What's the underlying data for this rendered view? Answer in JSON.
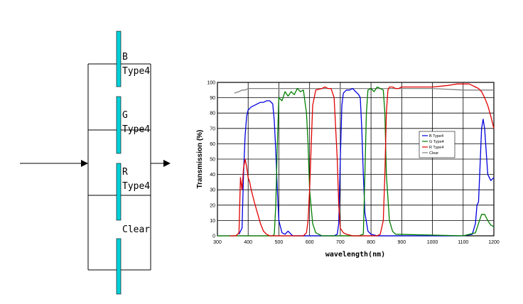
{
  "diagram": {
    "filters": [
      {
        "name": "B",
        "type": "Type4"
      },
      {
        "name": "G",
        "type": "Type4"
      },
      {
        "name": "R",
        "type": "Type4"
      },
      {
        "name": "Clear",
        "type": ""
      }
    ],
    "colors": {
      "filter_bar": "#00d0d8",
      "line": "#000000"
    }
  },
  "chart_data": {
    "type": "line",
    "xlabel": "wavelength(nm)",
    "ylabel": "Transmission (%)",
    "xlim": [
      300,
      1200
    ],
    "ylim": [
      0,
      100
    ],
    "xticks": [
      "300",
      "400",
      "500",
      "600",
      "700",
      "800",
      "900",
      "1000",
      "1100",
      "1200"
    ],
    "yticks": [
      "0",
      "10",
      "20",
      "30",
      "40",
      "50",
      "60",
      "70",
      "80",
      "90",
      "100"
    ],
    "grid": true,
    "legend_position": "right",
    "series": [
      {
        "name": "B Type4",
        "color": "#0000e0",
        "x": [
          370,
          380,
          385,
          390,
          395,
          400,
          410,
          420,
          430,
          440,
          450,
          460,
          470,
          480,
          485,
          490,
          495,
          500,
          510,
          520,
          530,
          540,
          545,
          560,
          600,
          650,
          680,
          690,
          695,
          700,
          705,
          710,
          720,
          730,
          740,
          750,
          760,
          765,
          770,
          775,
          780,
          790,
          800,
          820,
          900,
          1000,
          1100,
          1130,
          1140,
          1145,
          1150,
          1155,
          1160,
          1165,
          1170,
          1175,
          1180,
          1190,
          1200
        ],
        "y": [
          1,
          5,
          40,
          65,
          78,
          82,
          84,
          85,
          86,
          87,
          87,
          88,
          88,
          86,
          75,
          55,
          30,
          10,
          2,
          1,
          3,
          1,
          0,
          0,
          0,
          0,
          0,
          1,
          8,
          50,
          85,
          93,
          95,
          95,
          96,
          94,
          92,
          90,
          70,
          40,
          15,
          3,
          1,
          0,
          0,
          0,
          0,
          1,
          8,
          20,
          22,
          45,
          70,
          76,
          70,
          55,
          40,
          36,
          38
        ],
        "fmt": "sharp"
      },
      {
        "name": "G Type4",
        "color": "#008000",
        "x": [
          300,
          480,
          485,
          490,
          495,
          500,
          510,
          520,
          530,
          540,
          550,
          560,
          570,
          580,
          590,
          595,
          600,
          610,
          620,
          630,
          640,
          650,
          660,
          670,
          680,
          700,
          760,
          775,
          780,
          785,
          790,
          800,
          810,
          820,
          830,
          840,
          845,
          850,
          860,
          870,
          880,
          1100,
          1140,
          1150,
          1160,
          1170,
          1180,
          1190,
          1200
        ],
        "y": [
          0,
          0,
          1,
          20,
          60,
          90,
          88,
          94,
          91,
          94,
          92,
          96,
          94,
          95,
          80,
          60,
          30,
          8,
          2,
          1,
          0,
          0,
          0,
          0,
          0,
          0,
          0,
          1,
          40,
          80,
          95,
          96,
          94,
          97,
          96,
          95,
          80,
          40,
          10,
          3,
          1,
          0,
          2,
          8,
          14,
          14,
          10,
          7,
          6
        ],
        "fmt": "sharp"
      },
      {
        "name": "R Type4",
        "color": "#e00000",
        "x": [
          340,
          360,
          370,
          375,
          380,
          385,
          390,
          395,
          400,
          405,
          410,
          420,
          430,
          440,
          450,
          460,
          470,
          480,
          500,
          580,
          590,
          595,
          600,
          610,
          620,
          640,
          650,
          660,
          670,
          680,
          690,
          695,
          700,
          710,
          720,
          740,
          760,
          780,
          800,
          820,
          830,
          840,
          845,
          850,
          855,
          860,
          870,
          880,
          890,
          900,
          950,
          1000,
          1050,
          1080,
          1100,
          1120,
          1130,
          1140,
          1150,
          1160,
          1170,
          1180,
          1190,
          1200
        ],
        "y": [
          0,
          0,
          2,
          38,
          30,
          44,
          50,
          45,
          38,
          35,
          30,
          22,
          15,
          8,
          3,
          1,
          0,
          0,
          0,
          0,
          2,
          10,
          30,
          85,
          95,
          96,
          97,
          96,
          96,
          90,
          50,
          20,
          5,
          2,
          1,
          0,
          0,
          0,
          0,
          0,
          1,
          10,
          40,
          80,
          95,
          97,
          97,
          96,
          96,
          97,
          97,
          97,
          98,
          99,
          99,
          99,
          98,
          97,
          96,
          94,
          90,
          85,
          78,
          70
        ],
        "fmt": "sharp"
      },
      {
        "name": "Clear",
        "color": "#808080",
        "x": [
          355,
          370,
          380,
          390,
          400,
          450,
          500,
          600,
          700,
          800,
          900,
          1000,
          1100,
          1150,
          1200
        ],
        "y": [
          93,
          94,
          95,
          95,
          96,
          96,
          96,
          96,
          96,
          96,
          96,
          96,
          95,
          95,
          95
        ],
        "fmt": "sharp"
      }
    ]
  }
}
